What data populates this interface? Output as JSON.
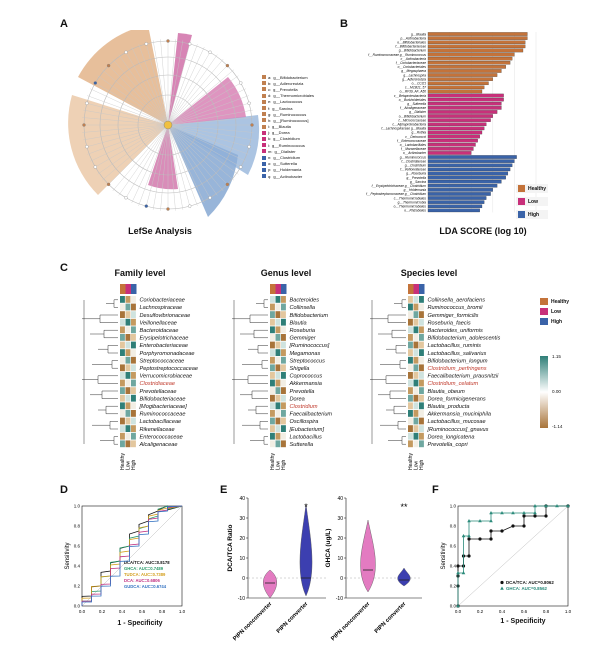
{
  "panels": {
    "A": {
      "letter": "A",
      "title": "LefSe Analysis",
      "legend": [
        {
          "code": "a:",
          "label": "g__Bifidobacterium",
          "color": "#c08050"
        },
        {
          "code": "b:",
          "label": "g__Adlercreutzia",
          "color": "#c08050"
        },
        {
          "code": "c:",
          "label": "g__Prevotella",
          "color": "#c08050"
        },
        {
          "code": "d:",
          "label": "g__Thermomicrobiales",
          "color": "#c08050"
        },
        {
          "code": "e:",
          "label": "g__Lactococcus",
          "color": "#c08050"
        },
        {
          "code": "f:",
          "label": "g__Sarcina",
          "color": "#c08050"
        },
        {
          "code": "g:",
          "label": "g__Ruminococcus",
          "color": "#c08050"
        },
        {
          "code": "h:",
          "label": "g__[Ruminococcus]",
          "color": "#c08050"
        },
        {
          "code": "i:",
          "label": "g__Blautia",
          "color": "#c08050"
        },
        {
          "code": "j:",
          "label": "g__Dorea",
          "color": "#c8307a"
        },
        {
          "code": "k:",
          "label": "g__Clostridium",
          "color": "#c8307a"
        },
        {
          "code": "l:",
          "label": "g__Ruminococcus",
          "color": "#c8307a"
        },
        {
          "code": "m:",
          "label": "g__Dialister",
          "color": "#c8307a"
        },
        {
          "code": "n:",
          "label": "g__Clostridium",
          "color": "#3a63a8"
        },
        {
          "code": "o:",
          "label": "g__Sutterella",
          "color": "#3a63a8"
        },
        {
          "code": "p:",
          "label": "g__Holdemania",
          "color": "#3a63a8"
        },
        {
          "code": "q:",
          "label": "g__Actinobacter",
          "color": "#3a63a8"
        }
      ]
    },
    "B": {
      "letter": "B",
      "xlabel": "LDA SCORE (log 10)",
      "legend": [
        {
          "label": "Healthy",
          "color": "#c4733a"
        },
        {
          "label": "Low",
          "color": "#c8307a"
        },
        {
          "label": "High",
          "color": "#3a63a8"
        }
      ],
      "chart_data": {
        "type": "bar",
        "xlim": [
          0,
          5
        ],
        "bars": [
          {
            "label": "g__Blautia",
            "value": 4.6,
            "group": "Healthy"
          },
          {
            "label": "p__Actinobacteria",
            "value": 4.6,
            "group": "Healthy"
          },
          {
            "label": "o__Bifidobacteriales",
            "value": 4.5,
            "group": "Healthy"
          },
          {
            "label": "f__Bifidobacteriaceae",
            "value": 4.5,
            "group": "Healthy"
          },
          {
            "label": "g__Bifidobacterium",
            "value": 4.4,
            "group": "Healthy"
          },
          {
            "label": "f__Ruminococcaceae g__Ruminococcus",
            "value": 4.0,
            "group": "Healthy"
          },
          {
            "label": "c__Actinobacteria",
            "value": 3.9,
            "group": "Healthy"
          },
          {
            "label": "f__Coriobacteriaceae",
            "value": 3.8,
            "group": "Healthy"
          },
          {
            "label": "o__Coriobacteriales",
            "value": 3.6,
            "group": "Healthy"
          },
          {
            "label": "g__Megasphaera",
            "value": 3.4,
            "group": "Healthy"
          },
          {
            "label": "g__Lachnospira",
            "value": 3.2,
            "group": "Healthy"
          },
          {
            "label": "g__Adlercreutzia",
            "value": 3.0,
            "group": "Healthy"
          },
          {
            "label": "o__CCI21",
            "value": 2.8,
            "group": "Healthy"
          },
          {
            "label": "c__MCB21_57",
            "value": 2.6,
            "group": "Healthy"
          },
          {
            "label": "o__RF39_AF_A50",
            "value": 2.5,
            "group": "Healthy"
          },
          {
            "label": "c__Betaproteobacteria",
            "value": 3.5,
            "group": "Low"
          },
          {
            "label": "o__Burkholderiales",
            "value": 3.5,
            "group": "Low"
          },
          {
            "label": "g__Sutterella",
            "value": 3.4,
            "group": "Low"
          },
          {
            "label": "f__Alcaligenaceae",
            "value": 3.4,
            "group": "Low"
          },
          {
            "label": "g__Dialister",
            "value": 3.2,
            "group": "Low"
          },
          {
            "label": "o__Bifidobacterium",
            "value": 3.0,
            "group": "Low"
          },
          {
            "label": "f__Micrococcaceae",
            "value": 2.9,
            "group": "Low"
          },
          {
            "label": "c__Alphaproteobacteria",
            "value": 2.7,
            "group": "Low"
          },
          {
            "label": "f__Lachnospiraceae g__Blautia",
            "value": 2.6,
            "group": "Low"
          },
          {
            "label": "g__Rothia",
            "value": 2.5,
            "group": "Low"
          },
          {
            "label": "c__Deinococci",
            "value": 2.4,
            "group": "Low"
          },
          {
            "label": "f__Enterococcaceae",
            "value": 2.3,
            "group": "Low"
          },
          {
            "label": "o__Lactobacillales",
            "value": 2.2,
            "group": "Low"
          },
          {
            "label": "f__Moraxellaceae",
            "value": 2.1,
            "group": "Low"
          },
          {
            "label": "o__Actinobacter",
            "value": 2.0,
            "group": "Low"
          },
          {
            "label": "g__Ruminococcus",
            "value": 4.1,
            "group": "High"
          },
          {
            "label": "f__Clostridiaceae",
            "value": 4.0,
            "group": "High"
          },
          {
            "label": "g__Clostridium",
            "value": 3.9,
            "group": "High"
          },
          {
            "label": "f__Veillonellaceae",
            "value": 3.8,
            "group": "High"
          },
          {
            "label": "g__Roseburia",
            "value": 3.7,
            "group": "High"
          },
          {
            "label": "g__Prevotella",
            "value": 3.6,
            "group": "High"
          },
          {
            "label": "g__Sarcina",
            "value": 3.4,
            "group": "High"
          },
          {
            "label": "f__Erysipelotrichaceae g__Clostridium",
            "value": 3.2,
            "group": "High"
          },
          {
            "label": "g__Holdemania",
            "value": 3.0,
            "group": "High"
          },
          {
            "label": "f__Peptostreptococcaceae g__Clostridium",
            "value": 2.9,
            "group": "High"
          },
          {
            "label": "c__Thermomicrobiales",
            "value": 2.7,
            "group": "High"
          },
          {
            "label": "g__Thermomicrobia",
            "value": 2.6,
            "group": "High"
          },
          {
            "label": "o__Thermomicrobiales",
            "value": 2.5,
            "group": "High"
          },
          {
            "label": "o__Rhizobiales",
            "value": 2.4,
            "group": "High"
          }
        ]
      }
    },
    "C": {
      "letter": "C",
      "legend": [
        {
          "label": "Healthy",
          "color": "#c4733a"
        },
        {
          "label": "Low",
          "color": "#c8307a"
        },
        {
          "label": "High",
          "color": "#3a63a8"
        }
      ],
      "scale": {
        "max": "1.15",
        "mid": "0.00",
        "min": "-1.14"
      },
      "column_labels": [
        "Healthy",
        "Low",
        "High"
      ],
      "family": {
        "title": "Family level",
        "rows": [
          "Coriobacteriaceae",
          "Lachnospiraceae",
          "Desulfovibrionaceae",
          "Veillonellaceae",
          "Bacteroidaceae",
          "Erysipelotrichaceae",
          "Enterobacteriaceae",
          "Porphyromonadaceae",
          "Streptococcaceae",
          "Peptostreptococcaceae",
          "Verrucomicrobiaceae",
          "Clostridiaceae",
          "Prevotellaceae",
          "Bifidobacteriaceae",
          "[Mogibacteriaceae]",
          "Ruminococcaceae",
          "Lactobacillaceae",
          "Rikenellaceae",
          "Enterococcaceae",
          "Alcaligenaceae"
        ]
      },
      "genus": {
        "title": "Genus level",
        "rows": [
          "Bacteroides",
          "Collinsella",
          "Bifidobacterium",
          "Blautia",
          "Roseburia",
          "Gemmiger",
          "[Ruminococcus]",
          "Megamonas",
          "Streptococcus",
          "Shigella",
          "Coprococcus",
          "Akkermansia",
          "Prevotella",
          "Dorea",
          "Clostridium",
          "Faecalibacterium",
          "Oscillospira",
          "[Eubacterium]",
          "Lactobacillus",
          "Sutterella"
        ]
      },
      "species": {
        "title": "Species level",
        "rows": [
          "Collinsella_aerofaciens",
          "Ruminococcus_bromii",
          "Gemmiger_formicilis",
          "Roseburia_faecis",
          "Bacteroides_uniformis",
          "Bifidobacterium_adolescentis",
          "Lactobacillus_ruminis",
          "Lactobacillus_salivarius",
          "Bifidobacterium_longum",
          "Clostridium_perfringens",
          "Faecalibacterium_prausnitzii",
          "Clostridium_celatum",
          "Blautia_obeum",
          "Dorea_formicigenerans",
          "Blautia_producta",
          "Akkermansia_muciniphila",
          "Lactobacillus_mucosae",
          "[Ruminococcus]_gnavus",
          "Dorea_longicatena",
          "Prevotella_copri"
        ]
      }
    },
    "D": {
      "letter": "D",
      "xlabel": "1 - Specificity",
      "ylabel": "Sensitivity",
      "legend": [
        {
          "label": "DCA/TCA: AUC=0.8178",
          "color": "#111111"
        },
        {
          "label": "GHCA: AUC=0.7489",
          "color": "#2a9a6a"
        },
        {
          "label": "TUDCA: AUC=0.7389",
          "color": "#d4a020"
        },
        {
          "label": "DCA: AUC=0.6806",
          "color": "#c03080"
        },
        {
          "label": "GUDCA: AUC=0.6744",
          "color": "#3070c0"
        }
      ],
      "ticks": [
        "0.0",
        "0.2",
        "0.4",
        "0.6",
        "0.8",
        "1.0"
      ]
    },
    "E": {
      "letter": "E",
      "left": {
        "ylabel": "DCA/TCA Ratio",
        "ticks": [
          "-10",
          "0",
          "10",
          "20",
          "30",
          "40"
        ],
        "star": "*"
      },
      "right": {
        "ylabel": "GHCA (ug/L)",
        "ticks": [
          "-10",
          "0",
          "10",
          "20",
          "30",
          "40"
        ],
        "star": "**"
      },
      "categories": [
        "PIPN nonconverter",
        "PIPN converter"
      ]
    },
    "F": {
      "letter": "F",
      "xlabel": "1 - Specificity",
      "ylabel": "Sensitivity",
      "ticks": [
        "0.0",
        "0.2",
        "0.4",
        "0.6",
        "0.8",
        "1.0"
      ],
      "legend": [
        {
          "label": "DCA/TCA: AUC=0.8062",
          "color": "#111111"
        },
        {
          "label": "GHCA: AUC=0.8562",
          "color": "#2a8a7a"
        }
      ],
      "chart_data": {
        "type": "line",
        "series": [
          {
            "name": "DCA/TCA: AUC=0.8062",
            "x": [
              0,
              0,
              0,
              0,
              0.05,
              0.05,
              0.1,
              0.1,
              0.2,
              0.3,
              0.3,
              0.4,
              0.5,
              0.6,
              0.6,
              0.7,
              0.8,
              0.8,
              1.0
            ],
            "y": [
              0,
              0.2,
              0.3,
              0.4,
              0.4,
              0.5,
              0.5,
              0.67,
              0.67,
              0.67,
              0.75,
              0.75,
              0.8,
              0.8,
              0.9,
              0.9,
              0.9,
              1.0,
              1.0
            ]
          },
          {
            "name": "GHCA: AUC=0.8562",
            "x": [
              0,
              0,
              0.05,
              0.05,
              0.1,
              0.1,
              0.2,
              0.3,
              0.3,
              0.4,
              0.5,
              0.6,
              0.7,
              0.7,
              0.8,
              0.9,
              1.0
            ],
            "y": [
              0,
              0.33,
              0.33,
              0.7,
              0.7,
              0.85,
              0.85,
              0.85,
              0.93,
              0.93,
              0.93,
              0.93,
              0.93,
              1.0,
              1.0,
              1.0,
              1.0
            ]
          }
        ]
      }
    }
  }
}
